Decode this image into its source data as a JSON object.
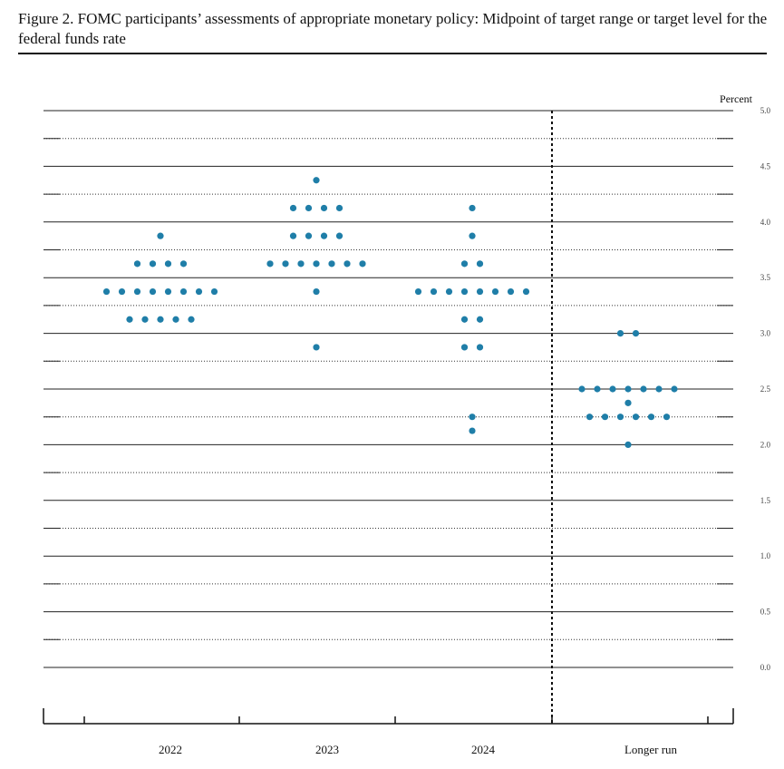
{
  "figure": {
    "title": "Figure 2.  FOMC participants’ assessments of appropriate monetary policy:  Midpoint of target range or target level for the federal funds rate"
  },
  "colors": {
    "dot": "#1f7ea8",
    "axis": "#111111"
  },
  "chart_data": {
    "type": "scatter",
    "ylabel": "Percent",
    "ylim": [
      0,
      5
    ],
    "yticks": [
      "0.0",
      "0.5",
      "1.0",
      "1.5",
      "2.0",
      "2.5",
      "3.0",
      "3.5",
      "4.0",
      "4.5",
      "5.0"
    ],
    "grid": true,
    "categories": [
      "2022",
      "2023",
      "2024",
      "Longer run"
    ],
    "points": [
      {
        "category": "2022",
        "levels": [
          {
            "y": 3.875,
            "count": 1
          },
          {
            "y": 3.625,
            "count": 4
          },
          {
            "y": 3.375,
            "count": 8
          },
          {
            "y": 3.125,
            "count": 5
          }
        ]
      },
      {
        "category": "2023",
        "levels": [
          {
            "y": 4.375,
            "count": 1
          },
          {
            "y": 4.125,
            "count": 4
          },
          {
            "y": 3.875,
            "count": 4
          },
          {
            "y": 3.625,
            "count": 7
          },
          {
            "y": 3.375,
            "count": 1
          },
          {
            "y": 2.875,
            "count": 1
          }
        ]
      },
      {
        "category": "2024",
        "levels": [
          {
            "y": 4.125,
            "count": 1
          },
          {
            "y": 3.875,
            "count": 1
          },
          {
            "y": 3.625,
            "count": 2
          },
          {
            "y": 3.375,
            "count": 8
          },
          {
            "y": 3.125,
            "count": 2
          },
          {
            "y": 2.875,
            "count": 2
          },
          {
            "y": 2.25,
            "count": 1
          },
          {
            "y": 2.125,
            "count": 1
          }
        ]
      },
      {
        "category": "Longer run",
        "levels": [
          {
            "y": 3.0,
            "count": 2
          },
          {
            "y": 2.5,
            "count": 7
          },
          {
            "y": 2.375,
            "count": 1
          },
          {
            "y": 2.25,
            "count": 6
          },
          {
            "y": 2.0,
            "count": 1
          }
        ]
      }
    ]
  }
}
